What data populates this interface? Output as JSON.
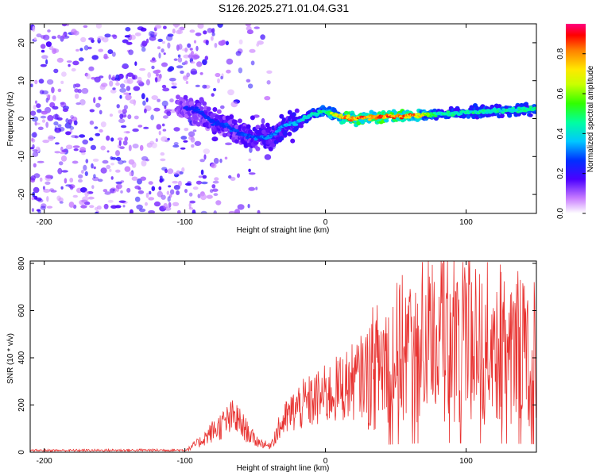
{
  "title": "S126.2025.271.01.04.G31",
  "chart_data": [
    {
      "type": "heatmap",
      "xlabel": "Height of straight line (km)",
      "ylabel": "Frequency (Hz)",
      "xlim": [
        -210,
        150
      ],
      "ylim": [
        -25,
        25
      ],
      "xticks": [
        -200,
        -100,
        0,
        100
      ],
      "yticks": [
        -20,
        -10,
        0,
        10,
        20
      ],
      "colorbar": {
        "label": "Normalized spectral amplitude",
        "range": [
          0.0,
          0.95
        ],
        "ticks": [
          "0.0",
          "0.2",
          "0.4",
          "0.6",
          "0.8"
        ]
      },
      "ridge_frequency_hz": [
        {
          "x": -100,
          "y": 3
        },
        {
          "x": -90,
          "y": 2
        },
        {
          "x": -80,
          "y": -1
        },
        {
          "x": -70,
          "y": -2
        },
        {
          "x": -60,
          "y": -4
        },
        {
          "x": -50,
          "y": -5
        },
        {
          "x": -40,
          "y": -5
        },
        {
          "x": -30,
          "y": -2
        },
        {
          "x": -20,
          "y": -1
        },
        {
          "x": -10,
          "y": 1
        },
        {
          "x": 0,
          "y": 2
        },
        {
          "x": 10,
          "y": 0.5
        },
        {
          "x": 20,
          "y": 0
        },
        {
          "x": 40,
          "y": 0.5
        },
        {
          "x": 60,
          "y": 0.7
        },
        {
          "x": 80,
          "y": 1.2
        },
        {
          "x": 100,
          "y": 1.6
        },
        {
          "x": 120,
          "y": 2
        },
        {
          "x": 150,
          "y": 2.5
        }
      ],
      "peak_amplitude": [
        {
          "x": -100,
          "a": 0.25
        },
        {
          "x": -80,
          "a": 0.3
        },
        {
          "x": -60,
          "a": 0.3
        },
        {
          "x": -40,
          "a": 0.35
        },
        {
          "x": -20,
          "a": 0.4
        },
        {
          "x": 0,
          "a": 0.55
        },
        {
          "x": 10,
          "a": 0.85
        },
        {
          "x": 30,
          "a": 0.95
        },
        {
          "x": 50,
          "a": 0.95
        },
        {
          "x": 65,
          "a": 0.85
        },
        {
          "x": 80,
          "a": 0.5
        },
        {
          "x": 100,
          "a": 0.5
        },
        {
          "x": 120,
          "a": 0.5
        },
        {
          "x": 150,
          "a": 0.5
        }
      ]
    },
    {
      "type": "line",
      "xlabel": "Height of straight line (km)",
      "ylabel": "SNR (10 * v/v)",
      "xlim": [
        -210,
        150
      ],
      "ylim": [
        0,
        810
      ],
      "xticks": [
        -200,
        -100,
        0,
        100
      ],
      "yticks": [
        0,
        200,
        400,
        600,
        800
      ],
      "color": "#e8312f",
      "envelope": [
        {
          "x": -210,
          "y": 10
        },
        {
          "x": -100,
          "y": 12
        },
        {
          "x": -90,
          "y": 40
        },
        {
          "x": -80,
          "y": 90
        },
        {
          "x": -65,
          "y": 150
        },
        {
          "x": -50,
          "y": 50
        },
        {
          "x": -40,
          "y": 25
        },
        {
          "x": -30,
          "y": 130
        },
        {
          "x": -20,
          "y": 190
        },
        {
          "x": 0,
          "y": 240
        },
        {
          "x": 20,
          "y": 300
        },
        {
          "x": 40,
          "y": 380
        },
        {
          "x": 60,
          "y": 450
        },
        {
          "x": 80,
          "y": 500
        },
        {
          "x": 100,
          "y": 480
        },
        {
          "x": 120,
          "y": 460
        },
        {
          "x": 140,
          "y": 440
        },
        {
          "x": 150,
          "y": 420
        }
      ]
    }
  ]
}
